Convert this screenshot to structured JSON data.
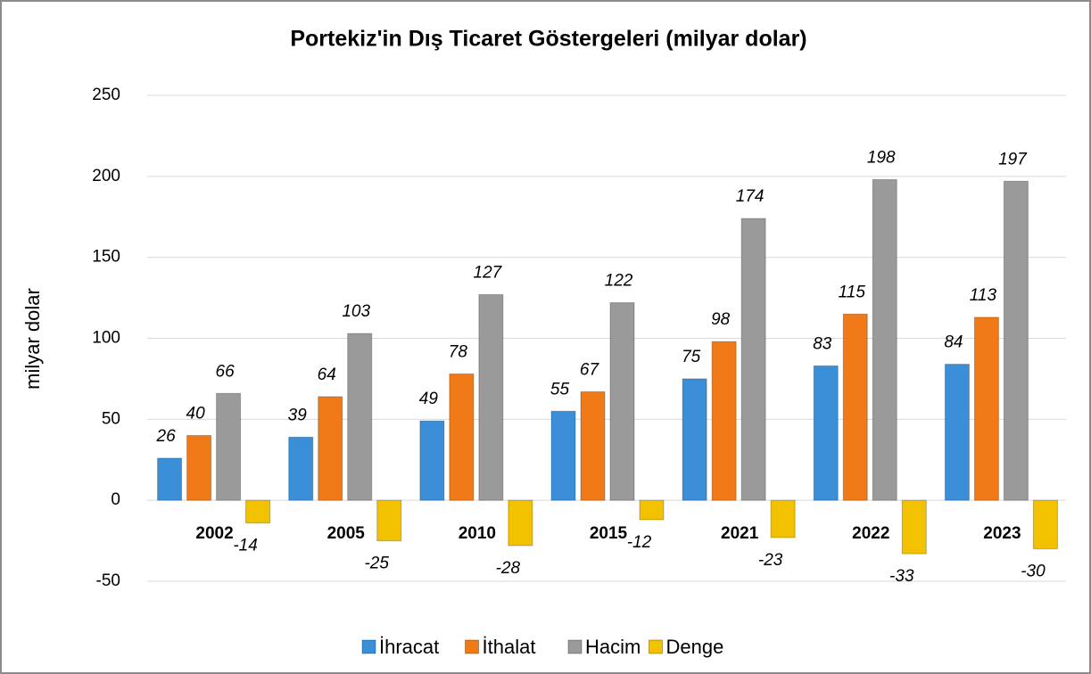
{
  "chart_data": {
    "type": "bar",
    "title": "Portekiz'in Dış Ticaret Göstergeleri  (milyar dolar)",
    "y_label": "milyar dolar",
    "categories": [
      "2002",
      "2005",
      "2010",
      "2015",
      "2021",
      "2022",
      "2023"
    ],
    "series": [
      {
        "name": "İhracat",
        "color": "#3a8fd8",
        "values": [
          26,
          39,
          49,
          55,
          75,
          83,
          84
        ]
      },
      {
        "name": "İthalat",
        "color": "#f07a18",
        "values": [
          40,
          64,
          78,
          67,
          98,
          115,
          113
        ]
      },
      {
        "name": "Hacim",
        "color": "#9a9a9a",
        "values": [
          66,
          103,
          127,
          122,
          174,
          198,
          197
        ]
      },
      {
        "name": "Denge",
        "color": "#f2c200",
        "values": [
          -14,
          -25,
          -28,
          -12,
          -23,
          -33,
          -30
        ]
      }
    ],
    "ylim": [
      -50,
      250
    ],
    "yticks": [
      -50,
      0,
      50,
      100,
      150,
      200,
      250
    ],
    "grid": true,
    "legend": "bottom"
  }
}
